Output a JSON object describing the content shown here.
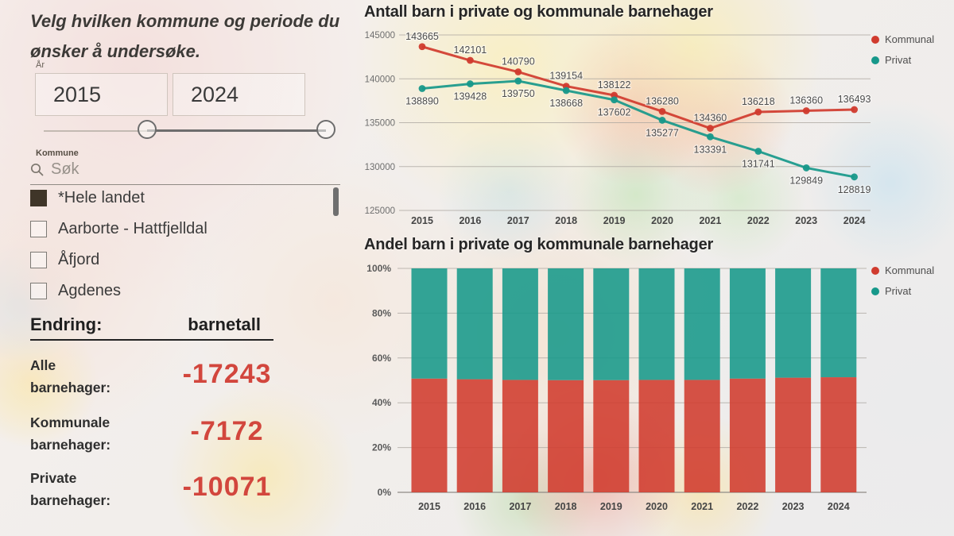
{
  "left_panel": {
    "title": "Velg hvilken kommune og periode du ønsker å undersøke.",
    "year_filter": {
      "label": "År",
      "from": "2015",
      "to": "2024"
    },
    "kommune_filter": {
      "label": "Kommune",
      "search_placeholder": "Søk",
      "items": [
        {
          "label": "*Hele landet",
          "checked": true
        },
        {
          "label": "Aarborte - Hattfjelldal",
          "checked": false
        },
        {
          "label": "Åfjord",
          "checked": false
        },
        {
          "label": "Agdenes",
          "checked": false
        }
      ]
    },
    "endring": {
      "heading_left": "Endring:",
      "heading_right": "barnetall",
      "rows": [
        {
          "label_line1": "Alle",
          "label_line2": "barnehager:",
          "value": "-17243"
        },
        {
          "label_line1": "Kommunale",
          "label_line2": "barnehager:",
          "value": "-7172"
        },
        {
          "label_line1": "Private",
          "label_line2": "barnehager:",
          "value": "-10071"
        }
      ]
    }
  },
  "colors": {
    "kommunal": "#d03b2e",
    "privat": "#17988a",
    "negative_value": "#d2463d"
  },
  "chart_data": [
    {
      "type": "line",
      "title": "Antall barn i private og kommunale barnehager",
      "x": [
        "2015",
        "2016",
        "2017",
        "2018",
        "2019",
        "2020",
        "2021",
        "2022",
        "2023",
        "2024"
      ],
      "ylim": [
        125000,
        145000
      ],
      "yticks": [
        145000,
        140000,
        135000,
        130000,
        125000
      ],
      "grid": true,
      "legend_position": "right",
      "data_labels": true,
      "series": [
        {
          "name": "Kommunal",
          "color_key": "kommunal",
          "label_position": "above",
          "values": [
            143665,
            142101,
            140790,
            139154,
            138122,
            136280,
            134360,
            136218,
            136360,
            136493
          ]
        },
        {
          "name": "Privat",
          "color_key": "privat",
          "label_position": "below",
          "values": [
            138890,
            139428,
            139750,
            138668,
            137602,
            135277,
            133391,
            131741,
            129849,
            128819
          ]
        }
      ]
    },
    {
      "type": "bar-stacked-100",
      "title": "Andel barn i private og kommunale barnehager",
      "x": [
        "2015",
        "2016",
        "2017",
        "2018",
        "2019",
        "2020",
        "2021",
        "2022",
        "2023",
        "2024"
      ],
      "ylim": [
        0,
        100
      ],
      "yticks": [
        "0%",
        "20%",
        "40%",
        "60%",
        "80%",
        "100%"
      ],
      "grid": true,
      "legend_position": "right",
      "series": [
        {
          "name": "Kommunal",
          "color_key": "kommunal",
          "values": [
            50.8,
            50.5,
            50.2,
            50.1,
            50.1,
            50.2,
            50.2,
            50.8,
            51.2,
            51.4
          ]
        },
        {
          "name": "Privat",
          "color_key": "privat",
          "values": [
            49.2,
            49.5,
            49.8,
            49.9,
            49.9,
            49.8,
            49.8,
            49.2,
            48.8,
            48.6
          ]
        }
      ]
    }
  ]
}
